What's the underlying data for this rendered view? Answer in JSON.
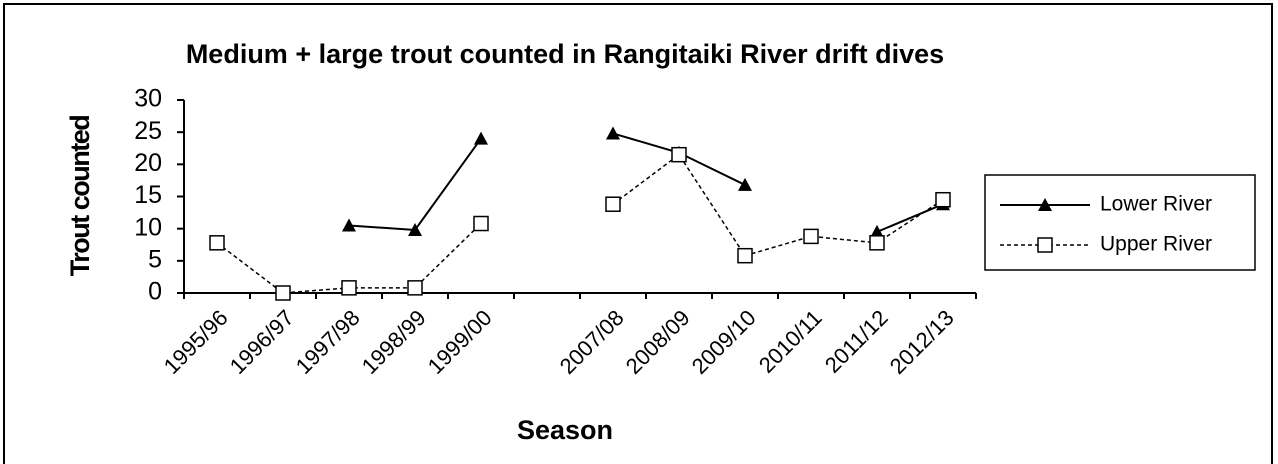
{
  "chart_data": {
    "type": "line",
    "title": "Medium + large trout counted in Rangitaiki River drift dives",
    "x_label": "Season",
    "y_label": "Trout counted",
    "categories": [
      "1995/96",
      "1996/97",
      "1997/98",
      "1998/99",
      "1999/00",
      null,
      "2007/08",
      "2008/09",
      "2009/10",
      "2010/11",
      "2011/12",
      "2012/13"
    ],
    "series": [
      {
        "name": "Lower River",
        "color": "#000000",
        "marker": "triangle",
        "dash": false,
        "values": [
          null,
          null,
          10.5,
          9.8,
          24,
          null,
          24.8,
          21.8,
          16.8,
          null,
          9.5,
          13.8
        ]
      },
      {
        "name": "Upper River",
        "color": "#000000",
        "marker": "square",
        "dash": true,
        "values": [
          7.8,
          0,
          0.8,
          0.8,
          10.8,
          null,
          13.8,
          21.5,
          5.8,
          8.8,
          7.8,
          14.5
        ]
      }
    ],
    "ylim": [
      0,
      30
    ],
    "yticks": [
      0,
      5,
      10,
      15,
      20,
      25,
      30
    ],
    "grid": false,
    "legend": "right"
  }
}
